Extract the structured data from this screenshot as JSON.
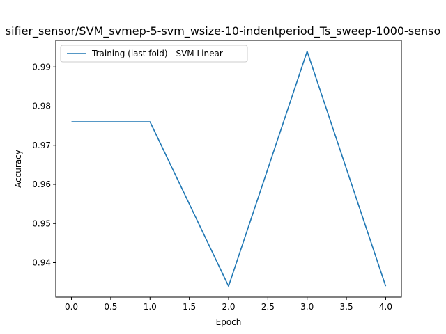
{
  "chart_data": {
    "type": "line",
    "title": "sifier_sensor/SVM_svmep-5-svm_wsize-10-indentperiod_Ts_sweep-1000-senso",
    "xlabel": "Epoch",
    "ylabel": "Accuracy",
    "xlim": [
      -0.2,
      4.2
    ],
    "ylim": [
      0.9312,
      0.9968
    ],
    "xticks": [
      0.0,
      0.5,
      1.0,
      1.5,
      2.0,
      2.5,
      3.0,
      3.5,
      4.0
    ],
    "xtick_labels": [
      "0.0",
      "0.5",
      "1.0",
      "1.5",
      "2.0",
      "2.5",
      "3.0",
      "3.5",
      "4.0"
    ],
    "yticks": [
      0.94,
      0.95,
      0.96,
      0.97,
      0.98,
      0.99
    ],
    "ytick_labels": [
      "0.94",
      "0.95",
      "0.96",
      "0.97",
      "0.98",
      "0.99"
    ],
    "grid": false,
    "legend_position": "top-left",
    "series": [
      {
        "name": "Training (last fold) - SVM Linear",
        "color": "#1f77b4",
        "x": [
          0,
          1,
          2,
          3,
          4
        ],
        "y": [
          0.976,
          0.976,
          0.934,
          0.994,
          0.934
        ]
      }
    ]
  }
}
